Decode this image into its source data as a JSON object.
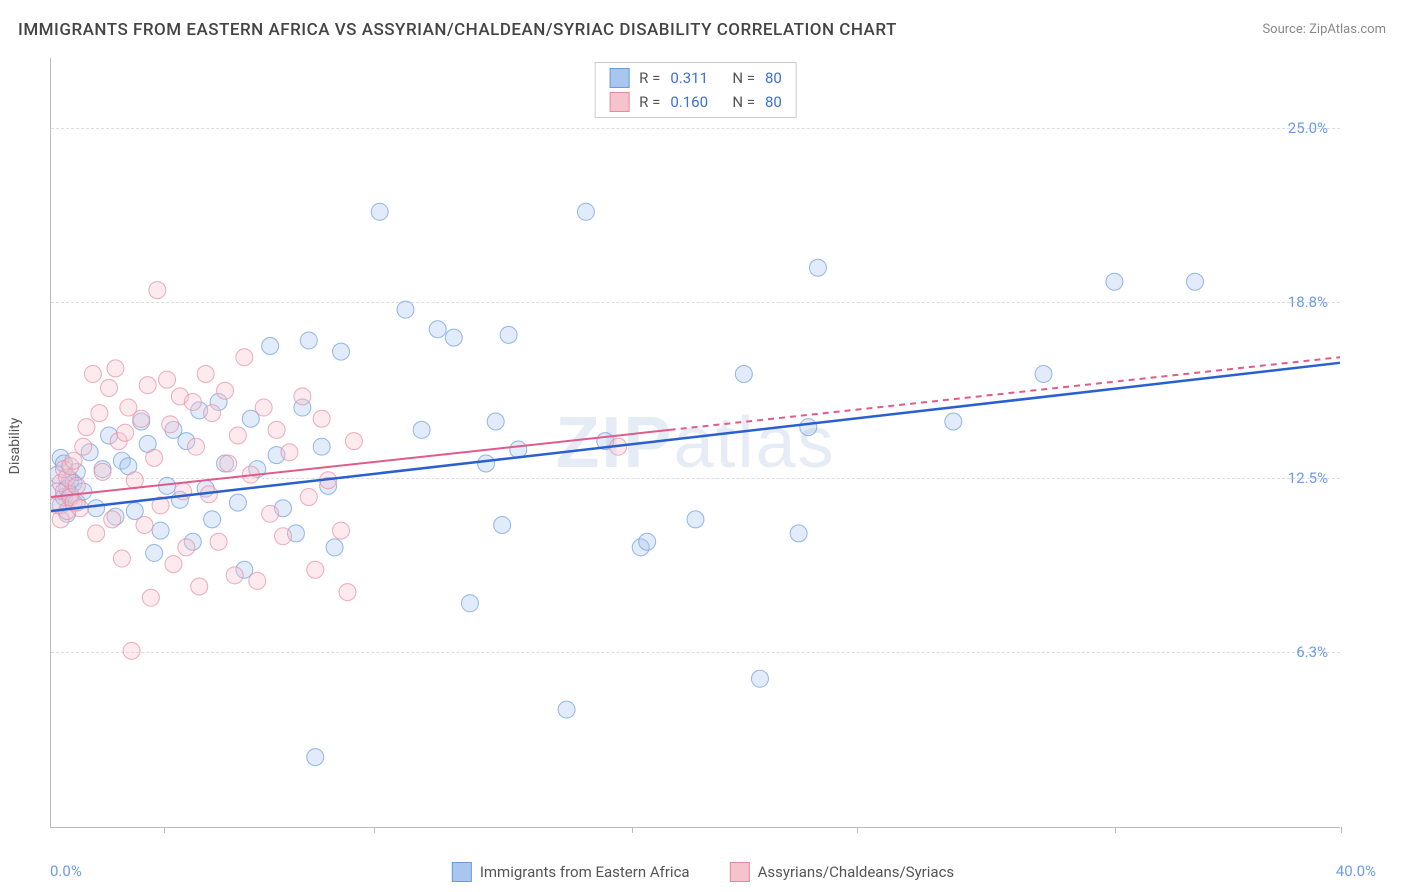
{
  "title": "IMMIGRANTS FROM EASTERN AFRICA VS ASSYRIAN/CHALDEAN/SYRIAC DISABILITY CORRELATION CHART",
  "source_label": "Source:",
  "source_name": "ZipAtlas.com",
  "y_axis_label": "Disability",
  "watermark": "ZIPatlas",
  "chart": {
    "type": "scatter",
    "xlim": [
      0,
      40
    ],
    "ylim": [
      0,
      27.5
    ],
    "x_min_label": "0.0%",
    "x_max_label": "40.0%",
    "y_ticks": [
      6.3,
      12.5,
      18.8,
      25.0
    ],
    "y_tick_labels": [
      "6.3%",
      "12.5%",
      "18.8%",
      "25.0%"
    ],
    "x_tick_positions": [
      3.5,
      10,
      18,
      25,
      33,
      40
    ],
    "grid_color": "#dddddd",
    "axis_color": "#bbbbbb",
    "marker_radius": 8.5,
    "marker_opacity": 0.35,
    "series": [
      {
        "name": "Immigrants from Eastern Africa",
        "color_fill": "#a9c7ee",
        "color_stroke": "#6a9bdc",
        "line_color": "#2a5fd0",
        "line_width": 2.5,
        "R": "0.311",
        "N": "80",
        "trend": {
          "x1": 0,
          "y1": 11.3,
          "x2": 40,
          "y2": 16.6
        },
        "points": [
          [
            0.2,
            12.0
          ],
          [
            0.2,
            12.6
          ],
          [
            0.3,
            11.5
          ],
          [
            0.3,
            13.2
          ],
          [
            0.4,
            11.8
          ],
          [
            0.4,
            13.0
          ],
          [
            0.5,
            11.2
          ],
          [
            0.5,
            12.1
          ],
          [
            0.6,
            12.4
          ],
          [
            0.6,
            11.9
          ],
          [
            0.7,
            12.3
          ],
          [
            0.8,
            11.6
          ],
          [
            0.8,
            12.7
          ],
          [
            1.0,
            12.0
          ],
          [
            1.2,
            13.4
          ],
          [
            1.4,
            11.4
          ],
          [
            1.6,
            12.8
          ],
          [
            1.8,
            14.0
          ],
          [
            2.0,
            11.1
          ],
          [
            2.2,
            13.1
          ],
          [
            2.4,
            12.9
          ],
          [
            2.6,
            11.3
          ],
          [
            2.8,
            14.5
          ],
          [
            3.0,
            13.7
          ],
          [
            3.2,
            9.8
          ],
          [
            3.4,
            10.6
          ],
          [
            3.6,
            12.2
          ],
          [
            3.8,
            14.2
          ],
          [
            4.0,
            11.7
          ],
          [
            4.2,
            13.8
          ],
          [
            4.4,
            10.2
          ],
          [
            4.6,
            14.9
          ],
          [
            4.8,
            12.1
          ],
          [
            5.0,
            11.0
          ],
          [
            5.2,
            15.2
          ],
          [
            5.4,
            13.0
          ],
          [
            5.8,
            11.6
          ],
          [
            6.0,
            9.2
          ],
          [
            6.2,
            14.6
          ],
          [
            6.4,
            12.8
          ],
          [
            6.8,
            17.2
          ],
          [
            7.0,
            13.3
          ],
          [
            7.2,
            11.4
          ],
          [
            7.6,
            10.5
          ],
          [
            7.8,
            15.0
          ],
          [
            8.0,
            17.4
          ],
          [
            8.2,
            2.5
          ],
          [
            8.4,
            13.6
          ],
          [
            8.6,
            12.2
          ],
          [
            8.8,
            10.0
          ],
          [
            9.0,
            17.0
          ],
          [
            10.2,
            22.0
          ],
          [
            11.0,
            18.5
          ],
          [
            11.5,
            14.2
          ],
          [
            12.0,
            17.8
          ],
          [
            12.5,
            17.5
          ],
          [
            13.0,
            8.0
          ],
          [
            13.5,
            13.0
          ],
          [
            13.8,
            14.5
          ],
          [
            14.0,
            10.8
          ],
          [
            14.2,
            17.6
          ],
          [
            14.5,
            13.5
          ],
          [
            16.6,
            22.0
          ],
          [
            16.0,
            4.2
          ],
          [
            17.2,
            13.8
          ],
          [
            18.3,
            10.0
          ],
          [
            18.5,
            10.2
          ],
          [
            20.0,
            11.0
          ],
          [
            21.5,
            16.2
          ],
          [
            22.0,
            5.3
          ],
          [
            23.2,
            10.5
          ],
          [
            23.5,
            14.3
          ],
          [
            23.8,
            20.0
          ],
          [
            28.0,
            14.5
          ],
          [
            30.8,
            16.2
          ],
          [
            33.0,
            19.5
          ],
          [
            35.5,
            19.5
          ]
        ]
      },
      {
        "name": "Assyrians/Chaldeans/Syriacs",
        "color_fill": "#f5c3ce",
        "color_stroke": "#e58aa0",
        "line_color": "#e05a8a",
        "line_width": 2,
        "line_dash": "6 5",
        "solid_until": 0.48,
        "R": "0.160",
        "N": "80",
        "trend": {
          "x1": 0,
          "y1": 11.8,
          "x2": 40,
          "y2": 16.8
        },
        "points": [
          [
            0.2,
            11.5
          ],
          [
            0.3,
            12.3
          ],
          [
            0.3,
            11.0
          ],
          [
            0.4,
            12.0
          ],
          [
            0.4,
            12.8
          ],
          [
            0.5,
            11.3
          ],
          [
            0.5,
            12.5
          ],
          [
            0.6,
            11.8
          ],
          [
            0.6,
            12.9
          ],
          [
            0.7,
            11.6
          ],
          [
            0.7,
            13.1
          ],
          [
            0.8,
            12.2
          ],
          [
            0.9,
            11.4
          ],
          [
            1.0,
            13.6
          ],
          [
            1.1,
            14.3
          ],
          [
            1.3,
            16.2
          ],
          [
            1.4,
            10.5
          ],
          [
            1.5,
            14.8
          ],
          [
            1.6,
            12.7
          ],
          [
            1.8,
            15.7
          ],
          [
            1.9,
            11.0
          ],
          [
            2.0,
            16.4
          ],
          [
            2.1,
            13.8
          ],
          [
            2.2,
            9.6
          ],
          [
            2.3,
            14.1
          ],
          [
            2.4,
            15.0
          ],
          [
            2.5,
            6.3
          ],
          [
            2.6,
            12.4
          ],
          [
            2.8,
            14.6
          ],
          [
            2.9,
            10.8
          ],
          [
            3.0,
            15.8
          ],
          [
            3.1,
            8.2
          ],
          [
            3.2,
            13.2
          ],
          [
            3.3,
            19.2
          ],
          [
            3.4,
            11.5
          ],
          [
            3.6,
            16.0
          ],
          [
            3.7,
            14.4
          ],
          [
            3.8,
            9.4
          ],
          [
            4.0,
            15.4
          ],
          [
            4.1,
            12.0
          ],
          [
            4.2,
            10.0
          ],
          [
            4.4,
            15.2
          ],
          [
            4.5,
            13.6
          ],
          [
            4.6,
            8.6
          ],
          [
            4.8,
            16.2
          ],
          [
            4.9,
            11.9
          ],
          [
            5.0,
            14.8
          ],
          [
            5.2,
            10.2
          ],
          [
            5.4,
            15.6
          ],
          [
            5.5,
            13.0
          ],
          [
            5.7,
            9.0
          ],
          [
            5.8,
            14.0
          ],
          [
            6.0,
            16.8
          ],
          [
            6.2,
            12.6
          ],
          [
            6.4,
            8.8
          ],
          [
            6.6,
            15.0
          ],
          [
            6.8,
            11.2
          ],
          [
            7.0,
            14.2
          ],
          [
            7.2,
            10.4
          ],
          [
            7.4,
            13.4
          ],
          [
            7.8,
            15.4
          ],
          [
            8.0,
            11.8
          ],
          [
            8.2,
            9.2
          ],
          [
            8.4,
            14.6
          ],
          [
            8.6,
            12.4
          ],
          [
            9.0,
            10.6
          ],
          [
            9.2,
            8.4
          ],
          [
            9.4,
            13.8
          ],
          [
            17.6,
            13.6
          ]
        ]
      }
    ]
  },
  "legend_top": [
    {
      "swatch_fill": "#a9c7ee",
      "swatch_stroke": "#6a9bdc",
      "r_label": "R =",
      "r_value": "0.311",
      "n_label": "N =",
      "n_value": "80"
    },
    {
      "swatch_fill": "#f5c3ce",
      "swatch_stroke": "#e58aa0",
      "r_label": "R =",
      "r_value": "0.160",
      "n_label": "N =",
      "n_value": "80"
    }
  ],
  "legend_bottom": [
    {
      "swatch_fill": "#a9c7ee",
      "swatch_stroke": "#6a9bdc",
      "label": "Immigrants from Eastern Africa"
    },
    {
      "swatch_fill": "#f5c3ce",
      "swatch_stroke": "#e58aa0",
      "label": "Assyrians/Chaldeans/Syriacs"
    }
  ]
}
